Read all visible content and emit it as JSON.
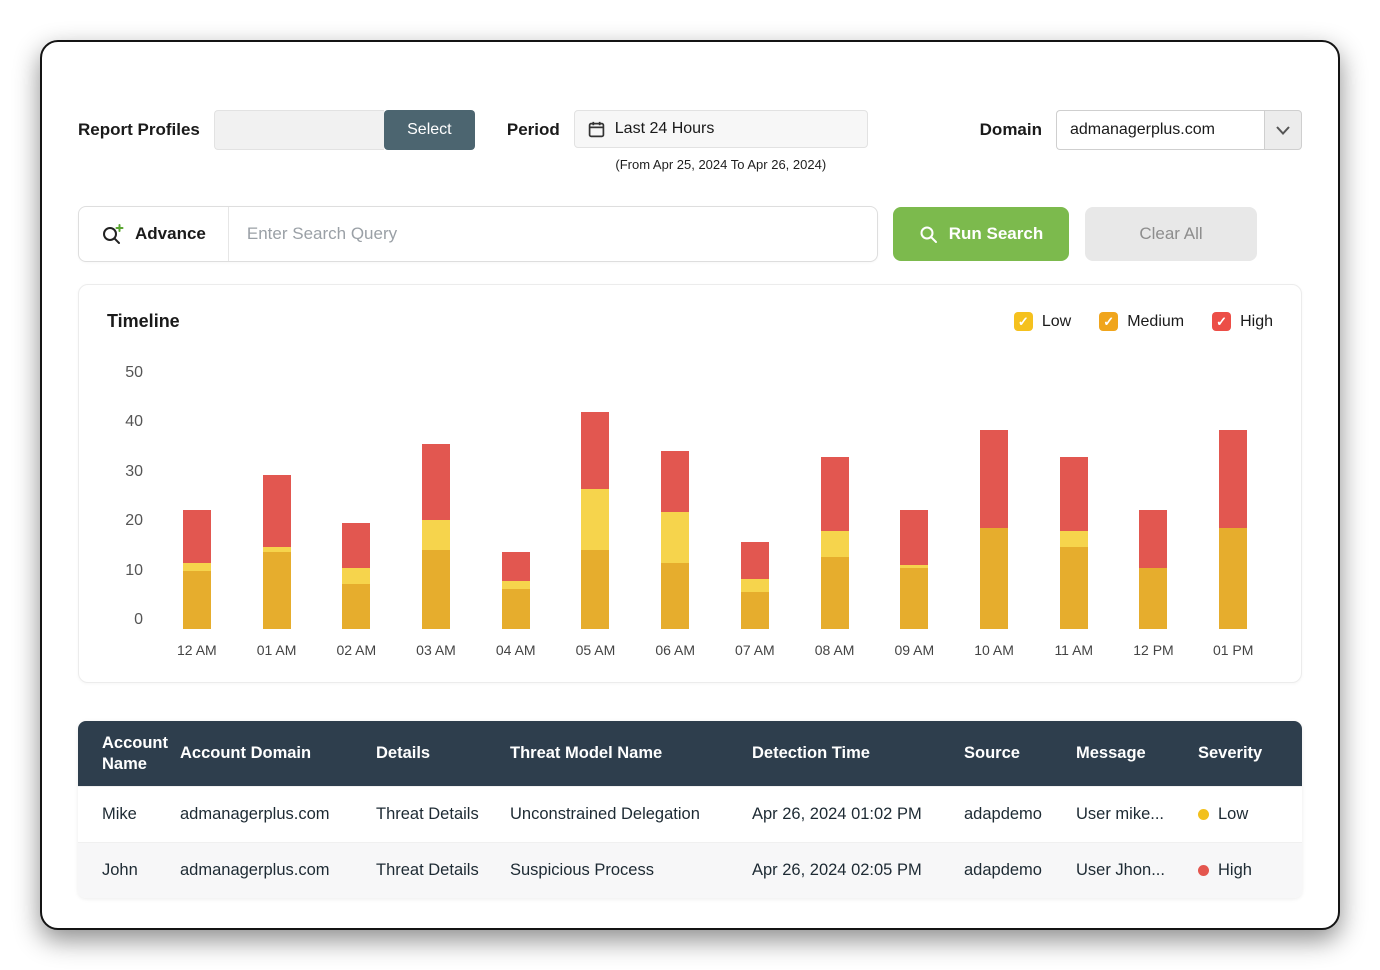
{
  "filters": {
    "report_profiles_label": "Report Profiles",
    "select_button": "Select",
    "period_label": "Period",
    "period_value": "Last 24 Hours",
    "period_range": "(From Apr 25, 2024 To Apr 26, 2024)",
    "domain_label": "Domain",
    "domain_value": "admanagerplus.com"
  },
  "search": {
    "advance_label": "Advance",
    "placeholder": "Enter Search Query",
    "run_search_label": "Run Search",
    "clear_all_label": "Clear All"
  },
  "chart_data": {
    "type": "bar",
    "stacked": true,
    "title": "Timeline",
    "categories": [
      "12 AM",
      "01 AM",
      "02 AM",
      "03 AM",
      "04 AM",
      "05 AM",
      "06 AM",
      "07 AM",
      "08 AM",
      "09 AM",
      "10 AM",
      "11 AM",
      "12 PM",
      "01 PM"
    ],
    "series": [
      {
        "name": "Low",
        "color": "#e6ad2d",
        "values": [
          11,
          14.5,
          8.5,
          15,
          7.5,
          15,
          12.5,
          7,
          13.5,
          11.5,
          19,
          15.5,
          11.5,
          19
        ]
      },
      {
        "name": "Medium",
        "color": "#f6d44c",
        "values": [
          1.5,
          1,
          3,
          5.5,
          1.5,
          11.5,
          9.5,
          2.5,
          5,
          0.5,
          0,
          3,
          0,
          0
        ]
      },
      {
        "name": "High",
        "color": "#e25750",
        "values": [
          10,
          13.5,
          8.5,
          14.5,
          5.5,
          14.5,
          11.5,
          7,
          14,
          10.5,
          18.5,
          14,
          11,
          18.5
        ]
      }
    ],
    "legend": [
      {
        "label": "Low",
        "color": "#f5c11e"
      },
      {
        "label": "Medium",
        "color": "#f0a51c"
      },
      {
        "label": "High",
        "color": "#ec4e47"
      }
    ],
    "ylim": [
      0,
      50
    ],
    "yticks": [
      50,
      40,
      30,
      20,
      10,
      0
    ],
    "legend_position": "top-right",
    "grid": false
  },
  "table": {
    "headers": [
      "Account Name",
      "Account Domain",
      "Details",
      "Threat Model Name",
      "Detection Time",
      "Source",
      "Message",
      "Severity"
    ],
    "keys": [
      "account_name",
      "account_domain",
      "details",
      "threat_model",
      "detection_time",
      "source",
      "message",
      "severity"
    ],
    "rows": [
      {
        "account_name": "Mike",
        "account_domain": "admanagerplus.com",
        "details": "Threat Details",
        "threat_model": "Unconstrained Delegation",
        "detection_time": "Apr 26, 2024 01:02 PM",
        "source": "adapdemo",
        "message": "User mike...",
        "severity": "Low",
        "severity_color": "#f2c01d"
      },
      {
        "account_name": "John",
        "account_domain": "admanagerplus.com",
        "details": "Threat Details",
        "threat_model": "Suspicious Process",
        "detection_time": "Apr 26, 2024 02:05 PM",
        "source": "adapdemo",
        "message": "User Jhon...",
        "severity": "High",
        "severity_color": "#e4564e"
      }
    ]
  },
  "colors": {
    "brand_green": "#7cba4d",
    "select_button_bg": "#4c6570",
    "table_header_bg": "#2e3e4d",
    "severity_low": "#f2c01d",
    "severity_high": "#e4564e",
    "bar_low": "#e6ad2d",
    "bar_medium": "#f6d44c",
    "bar_high": "#e25750"
  }
}
